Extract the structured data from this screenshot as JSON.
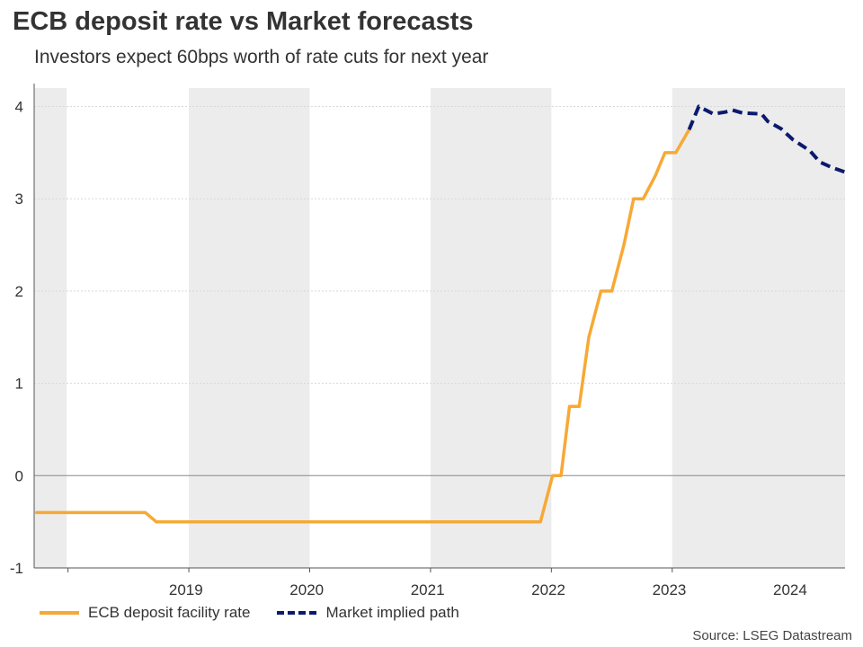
{
  "title": "ECB deposit rate vs Market forecasts",
  "subtitle": "Investors expect 60bps worth of rate cuts for next year",
  "source": "Source: LSEG Datastream",
  "colors": {
    "ecb": "#f7a935",
    "market": "#0b1a6e",
    "band": "#ececec",
    "grid": "#d8d8d8"
  },
  "chart_data": {
    "type": "line",
    "title": "ECB deposit rate vs Market forecasts",
    "xlabel": "",
    "ylabel": "",
    "ylim": [
      -1,
      4.2
    ],
    "xlim": [
      2018.28,
      2024.99
    ],
    "yticks": [
      -1,
      0,
      1,
      2,
      3,
      4
    ],
    "xticks": [
      {
        "label": "2019",
        "pos": 2019.5
      },
      {
        "label": "2020",
        "pos": 2020.5
      },
      {
        "label": "2021",
        "pos": 2021.5
      },
      {
        "label": "2022",
        "pos": 2022.5
      },
      {
        "label": "2023",
        "pos": 2023.5
      },
      {
        "label": "2024",
        "pos": 2024.5
      }
    ],
    "shaded_bands": [
      [
        2018.28,
        2018.55
      ],
      [
        2019.56,
        2020.56
      ],
      [
        2021.56,
        2022.56
      ],
      [
        2023.56,
        2024.99
      ]
    ],
    "series": [
      {
        "name": "ECB deposit facility rate",
        "style": "solid",
        "points": [
          [
            2018.3,
            -0.4
          ],
          [
            2019.2,
            -0.4
          ],
          [
            2019.29,
            -0.5
          ],
          [
            2022.47,
            -0.5
          ],
          [
            2022.57,
            0.0
          ],
          [
            2022.64,
            0.0
          ],
          [
            2022.71,
            0.75
          ],
          [
            2022.79,
            0.75
          ],
          [
            2022.87,
            1.5
          ],
          [
            2022.97,
            2.0
          ],
          [
            2023.06,
            2.0
          ],
          [
            2023.16,
            2.5
          ],
          [
            2023.24,
            3.0
          ],
          [
            2023.32,
            3.0
          ],
          [
            2023.42,
            3.25
          ],
          [
            2023.5,
            3.5
          ],
          [
            2023.59,
            3.5
          ],
          [
            2023.7,
            3.75
          ]
        ]
      },
      {
        "name": "Market implied path",
        "style": "dashed",
        "points": [
          [
            2023.7,
            3.75
          ],
          [
            2023.78,
            4.0
          ],
          [
            2023.9,
            3.92
          ],
          [
            2024.0,
            3.94
          ],
          [
            2024.06,
            3.96
          ],
          [
            2024.14,
            3.93
          ],
          [
            2024.3,
            3.92
          ],
          [
            2024.35,
            3.84
          ],
          [
            2024.46,
            3.76
          ],
          [
            2024.56,
            3.64
          ],
          [
            2024.7,
            3.52
          ],
          [
            2024.78,
            3.4
          ],
          [
            2024.88,
            3.34
          ],
          [
            2024.99,
            3.29
          ]
        ]
      }
    ]
  },
  "legend": {
    "items": [
      "ECB deposit facility rate",
      "Market implied path"
    ]
  }
}
